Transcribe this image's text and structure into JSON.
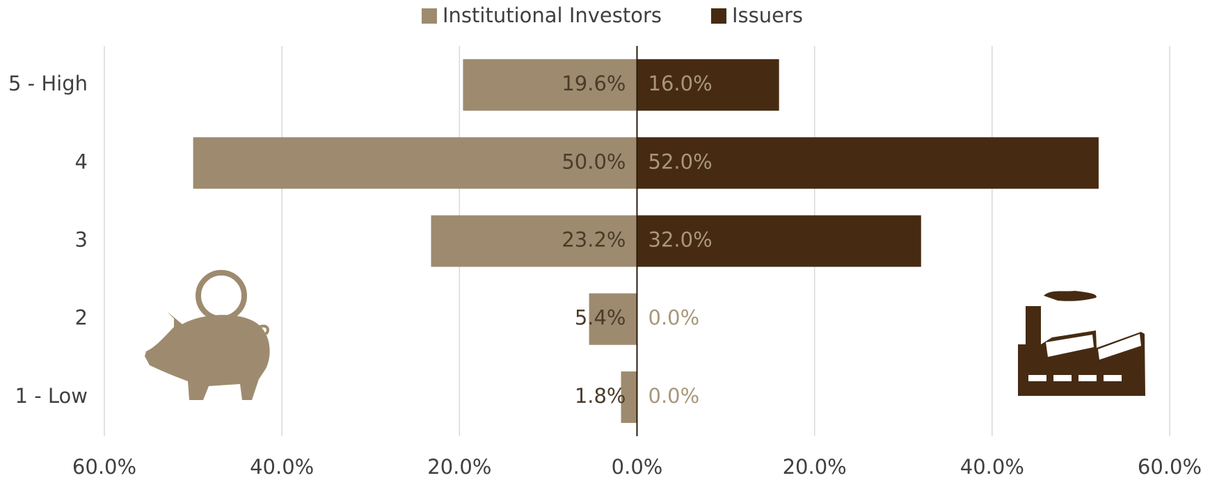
{
  "chart_data": {
    "type": "diverging_bar",
    "categories": [
      "5 - High",
      "4",
      "3",
      "2",
      "1 - Low"
    ],
    "series": [
      {
        "name": "Institutional Investors",
        "color": "#9e8b6f",
        "label_color": "#4b3b2b",
        "values": [
          -19.6,
          -50.0,
          -23.2,
          -5.4,
          -1.8
        ],
        "value_labels": [
          "19.6%",
          "50.0%",
          "23.2%",
          "5.4%",
          "1.8%"
        ]
      },
      {
        "name": "Issuers",
        "color": "#462b12",
        "label_color": "#a8977c",
        "values": [
          16.0,
          52.0,
          32.0,
          0.0,
          0.0
        ],
        "value_labels": [
          "16.0%",
          "52.0%",
          "32.0%",
          "0.0%",
          "0.0%"
        ]
      }
    ],
    "xlim": [
      -60,
      60
    ],
    "xticks": [
      {
        "value": -60,
        "label": "60.0%"
      },
      {
        "value": -40,
        "label": "40.0%"
      },
      {
        "value": -20,
        "label": "20.0%"
      },
      {
        "value": 0,
        "label": "0.0%"
      },
      {
        "value": 20,
        "label": "20.0%"
      },
      {
        "value": 40,
        "label": "40.0%"
      },
      {
        "value": 60,
        "label": "60.0%"
      }
    ],
    "grid": true,
    "legend": "top"
  }
}
